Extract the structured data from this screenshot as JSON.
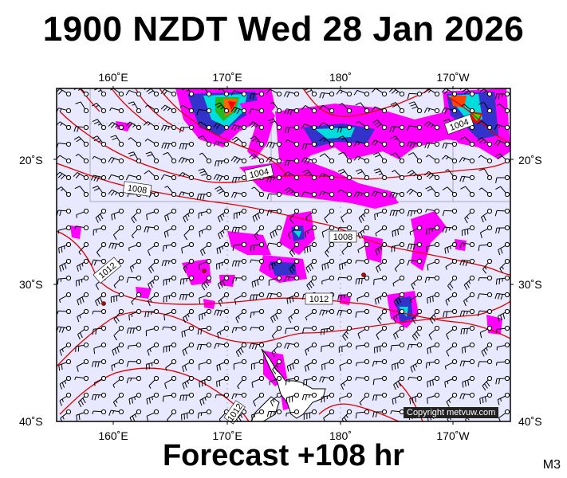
{
  "header": {
    "title": "1900 NZDT Wed 28 Jan 2026"
  },
  "footer": {
    "forecast": "Forecast +108 hr",
    "model": "M3"
  },
  "map": {
    "lon_labels": [
      "160˚E",
      "170˚E",
      "180˚",
      "170˚W"
    ],
    "lat_labels": [
      "20˚S",
      "30˚S",
      "40˚S"
    ],
    "isobar_labels": [
      "1004",
      "1008",
      "1008",
      "1012",
      "1012",
      "1004",
      "1012"
    ],
    "copyright": "Copyright metvuw.com",
    "colors": {
      "ocean": "#e8e8ff",
      "isobar": "#e00000",
      "rain_light": "#ff00ff",
      "rain_mid": "#0000cc",
      "rain_heavy": "#00ffff",
      "rain_peak": "#ff0000",
      "land": "#ffffff"
    }
  }
}
